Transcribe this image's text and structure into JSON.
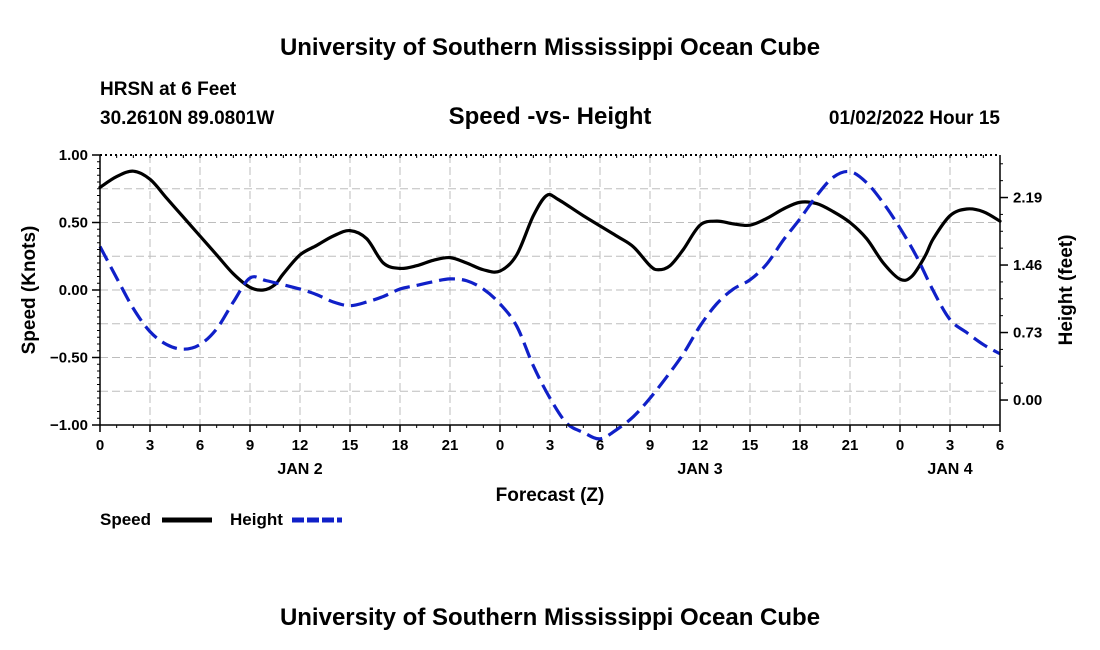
{
  "page": {
    "title_top": "University of Southern Mississippi Ocean Cube",
    "title_bottom": "University of Southern Mississippi Ocean Cube",
    "station_name": "HRSN at 6 Feet",
    "station_coords": "30.2610N  89.0801W",
    "timestamp": "01/02/2022 Hour 15"
  },
  "chart_data": {
    "type": "line",
    "title": "Speed -vs- Height",
    "xlabel": "Forecast (Z)",
    "ylabel": "Speed (Knots)",
    "y2label": "Height (feet)",
    "x_range_hours": [
      0,
      54
    ],
    "ylim": [
      -1.0,
      1.0
    ],
    "y2lim": [
      -0.27,
      2.65
    ],
    "grid": true,
    "legend_position": "bottom-left",
    "x_ticks": [
      {
        "hour": 0,
        "label": "0"
      },
      {
        "hour": 3,
        "label": "3"
      },
      {
        "hour": 6,
        "label": "6"
      },
      {
        "hour": 9,
        "label": "9"
      },
      {
        "hour": 12,
        "label": "12"
      },
      {
        "hour": 15,
        "label": "15"
      },
      {
        "hour": 18,
        "label": "18"
      },
      {
        "hour": 21,
        "label": "21"
      },
      {
        "hour": 24,
        "label": "0"
      },
      {
        "hour": 27,
        "label": "3"
      },
      {
        "hour": 30,
        "label": "6"
      },
      {
        "hour": 33,
        "label": "9"
      },
      {
        "hour": 36,
        "label": "12"
      },
      {
        "hour": 39,
        "label": "15"
      },
      {
        "hour": 42,
        "label": "18"
      },
      {
        "hour": 45,
        "label": "21"
      },
      {
        "hour": 48,
        "label": "0"
      },
      {
        "hour": 51,
        "label": "3"
      },
      {
        "hour": 54,
        "label": "6"
      }
    ],
    "date_labels": [
      {
        "hour": 12,
        "label": "JAN 2"
      },
      {
        "hour": 36,
        "label": "JAN 3"
      },
      {
        "hour": 51,
        "label": "JAN 4"
      }
    ],
    "y_ticks": [
      {
        "value": 1.0,
        "label": "1.00"
      },
      {
        "value": 0.5,
        "label": "0.50"
      },
      {
        "value": 0.0,
        "label": "0.00"
      },
      {
        "value": -0.5,
        "label": "−0.50"
      },
      {
        "value": -1.0,
        "label": "−1.00"
      }
    ],
    "y2_ticks": [
      {
        "value": 2.19,
        "label": "2.19"
      },
      {
        "value": 1.46,
        "label": "1.46"
      },
      {
        "value": 0.73,
        "label": "0.73"
      },
      {
        "value": 0.0,
        "label": "0.00"
      }
    ],
    "series": [
      {
        "name": "Speed",
        "axis": "left",
        "color": "#000000",
        "dash": "solid",
        "points": [
          [
            0,
            0.76
          ],
          [
            1,
            0.84
          ],
          [
            2,
            0.88
          ],
          [
            3,
            0.82
          ],
          [
            4,
            0.68
          ],
          [
            5,
            0.54
          ],
          [
            6,
            0.4
          ],
          [
            7,
            0.26
          ],
          [
            8,
            0.12
          ],
          [
            9,
            0.02
          ],
          [
            9.8,
            0.0
          ],
          [
            10.5,
            0.04
          ],
          [
            11,
            0.12
          ],
          [
            12,
            0.26
          ],
          [
            13,
            0.33
          ],
          [
            14,
            0.4
          ],
          [
            15,
            0.44
          ],
          [
            16,
            0.38
          ],
          [
            17,
            0.2
          ],
          [
            18,
            0.16
          ],
          [
            19,
            0.18
          ],
          [
            20,
            0.22
          ],
          [
            21,
            0.24
          ],
          [
            22,
            0.2
          ],
          [
            23,
            0.15
          ],
          [
            24,
            0.14
          ],
          [
            25,
            0.26
          ],
          [
            26,
            0.55
          ],
          [
            26.8,
            0.7
          ],
          [
            27.5,
            0.67
          ],
          [
            29,
            0.55
          ],
          [
            31,
            0.4
          ],
          [
            32,
            0.32
          ],
          [
            33,
            0.18
          ],
          [
            33.5,
            0.15
          ],
          [
            34.2,
            0.18
          ],
          [
            35,
            0.3
          ],
          [
            36,
            0.48
          ],
          [
            37,
            0.51
          ],
          [
            38,
            0.49
          ],
          [
            39,
            0.48
          ],
          [
            40,
            0.53
          ],
          [
            41,
            0.6
          ],
          [
            42,
            0.65
          ],
          [
            43,
            0.64
          ],
          [
            44,
            0.58
          ],
          [
            45,
            0.5
          ],
          [
            46,
            0.38
          ],
          [
            47,
            0.2
          ],
          [
            48,
            0.08
          ],
          [
            48.7,
            0.1
          ],
          [
            49.5,
            0.25
          ],
          [
            50,
            0.38
          ],
          [
            51,
            0.55
          ],
          [
            52,
            0.6
          ],
          [
            53,
            0.58
          ],
          [
            54,
            0.51
          ]
        ]
      },
      {
        "name": "Height",
        "axis": "right",
        "color": "#1020c8",
        "dash": "dashed",
        "points": [
          [
            0,
            1.66
          ],
          [
            1,
            1.32
          ],
          [
            2,
            0.99
          ],
          [
            3,
            0.74
          ],
          [
            4,
            0.6
          ],
          [
            5,
            0.55
          ],
          [
            6,
            0.6
          ],
          [
            7,
            0.77
          ],
          [
            8,
            1.06
          ],
          [
            9,
            1.32
          ],
          [
            10,
            1.29
          ],
          [
            12,
            1.2
          ],
          [
            13,
            1.14
          ],
          [
            14,
            1.06
          ],
          [
            15,
            1.02
          ],
          [
            16,
            1.06
          ],
          [
            17,
            1.12
          ],
          [
            18,
            1.2
          ],
          [
            19,
            1.24
          ],
          [
            20,
            1.28
          ],
          [
            21,
            1.31
          ],
          [
            22,
            1.29
          ],
          [
            23,
            1.2
          ],
          [
            24,
            1.04
          ],
          [
            25,
            0.8
          ],
          [
            26,
            0.37
          ],
          [
            27,
            0.02
          ],
          [
            28,
            -0.25
          ],
          [
            29,
            -0.35
          ],
          [
            30,
            -0.42
          ],
          [
            31,
            -0.32
          ],
          [
            32,
            -0.18
          ],
          [
            33,
            0.02
          ],
          [
            34,
            0.25
          ],
          [
            35,
            0.5
          ],
          [
            36,
            0.8
          ],
          [
            37,
            1.04
          ],
          [
            38,
            1.2
          ],
          [
            39,
            1.3
          ],
          [
            40,
            1.47
          ],
          [
            41,
            1.73
          ],
          [
            42,
            1.96
          ],
          [
            43,
            2.21
          ],
          [
            44,
            2.41
          ],
          [
            45,
            2.47
          ],
          [
            46,
            2.35
          ],
          [
            47,
            2.13
          ],
          [
            48,
            1.86
          ],
          [
            49,
            1.55
          ],
          [
            50,
            1.18
          ],
          [
            51,
            0.87
          ],
          [
            52,
            0.73
          ],
          [
            53,
            0.6
          ],
          [
            54,
            0.5
          ]
        ]
      }
    ]
  }
}
